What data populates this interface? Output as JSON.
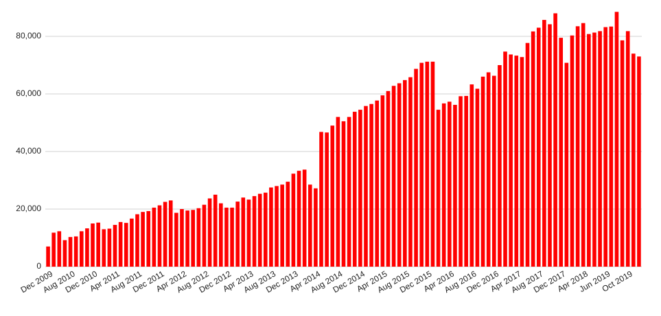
{
  "chart_data": {
    "type": "bar",
    "color": "#ff0000",
    "grid": true,
    "categories": [
      "Dec 2009",
      null,
      null,
      null,
      "Aug 2010",
      null,
      null,
      null,
      "Dec 2010",
      null,
      null,
      null,
      "Apr 2011",
      null,
      null,
      null,
      "Aug 2011",
      null,
      null,
      null,
      "Dec 2011",
      null,
      null,
      null,
      "Apr 2012",
      null,
      null,
      null,
      "Aug 2012",
      null,
      null,
      null,
      "Dec 2012",
      null,
      null,
      null,
      "Apr 2013",
      null,
      null,
      null,
      "Aug 2013",
      null,
      null,
      null,
      "Dec 2013",
      null,
      null,
      null,
      "Apr 2014",
      null,
      null,
      null,
      "Aug 2014",
      null,
      null,
      null,
      "Dec 2014",
      null,
      null,
      null,
      "Apr 2015",
      null,
      null,
      null,
      "Aug 2015",
      null,
      null,
      null,
      "Dec 2015",
      null,
      null,
      null,
      "Apr 2016",
      null,
      null,
      null,
      "Aug 2016",
      null,
      null,
      null,
      "Dec 2016",
      null,
      null,
      null,
      "Apr 2017",
      null,
      null,
      null,
      "Aug 2017",
      null,
      null,
      null,
      "Dec 2017",
      null,
      null,
      null,
      "Apr 2018",
      null,
      null,
      null,
      "Jun 2019",
      null,
      null,
      null,
      "Oct 2019",
      null,
      null
    ],
    "values": [
      7000,
      11800,
      12300,
      9200,
      10300,
      10500,
      12300,
      13300,
      15000,
      15300,
      13000,
      13200,
      14500,
      15500,
      15200,
      16700,
      18200,
      19000,
      19300,
      20500,
      21300,
      22500,
      23000,
      18700,
      20000,
      19500,
      19700,
      20300,
      21500,
      23700,
      25000,
      22000,
      20500,
      20500,
      22600,
      24000,
      23300,
      24500,
      25300,
      25700,
      27500,
      28000,
      28500,
      29500,
      32300,
      33300,
      33700,
      28500,
      27200,
      46800,
      46600,
      49000,
      52000,
      50500,
      52000,
      53800,
      54500,
      55800,
      56500,
      57700,
      59500,
      61000,
      62800,
      63700,
      64800,
      65800,
      68700,
      70800,
      71200,
      71200,
      54500,
      56700,
      57300,
      56200,
      59200,
      59300,
      63300,
      61800,
      66000,
      67500,
      66300,
      70000,
      74700,
      73700,
      73300,
      72800,
      77700,
      81700,
      83000,
      85700,
      84200,
      88000,
      79500,
      70800,
      80300,
      83500,
      84600,
      80800,
      81300,
      81800,
      83200,
      83400,
      88500,
      78600,
      81800,
      74000,
      73000
    ],
    "ylim": [
      0,
      90000
    ],
    "yticks": [
      0,
      {
        "value": 20000,
        "label": "20,000"
      },
      {
        "value": 40000,
        "label": "40,000"
      },
      {
        "value": 60000,
        "label": "60,000"
      },
      {
        "value": 80000,
        "label": "80,000"
      }
    ]
  }
}
